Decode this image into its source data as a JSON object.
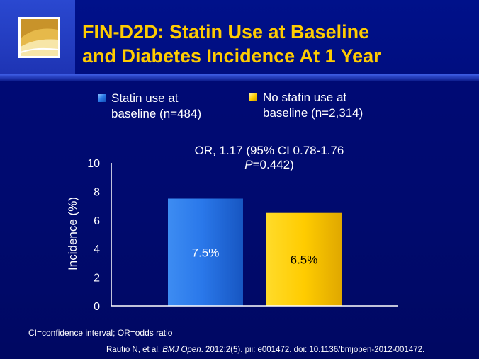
{
  "header": {
    "title_line1": "FIN-D2D: Statin Use at Baseline",
    "title_line2": "and Diabetes Incidence At 1 Year"
  },
  "colors": {
    "title": "#ffcc00",
    "statin": "#1f6fe0",
    "no_statin": "#ffcc00"
  },
  "legend": {
    "items": [
      {
        "line1": "Statin use at",
        "line2": "baseline (n=484)"
      },
      {
        "line1": "No statin use at",
        "line2": "baseline (n=2,314)"
      }
    ]
  },
  "annotation": {
    "line1": "OR, 1.17 (95% CI 0.78-1.76",
    "line2_italic": "P",
    "line2_rest": "=0.442)"
  },
  "chart_data": {
    "type": "bar",
    "categories": [
      "Statin use at baseline (n=484)",
      "No statin use at baseline (n=2,314)"
    ],
    "values": [
      7.5,
      6.5
    ],
    "data_labels": [
      "7.5%",
      "6.5%"
    ],
    "ylabel": "Incidence (%)",
    "ylim": [
      0,
      10
    ],
    "yticks": [
      0,
      2,
      4,
      6,
      8,
      10
    ],
    "grid": false,
    "legend_position": "top"
  },
  "footnote": "CI=confidence interval; OR=odds ratio",
  "citation": {
    "prefix": "Rautio N, et al. ",
    "journal": "BMJ Open",
    "suffix": ". 2012;2(5). pii: e001472. doi: 10.1136/bmjopen-2012-001472."
  }
}
